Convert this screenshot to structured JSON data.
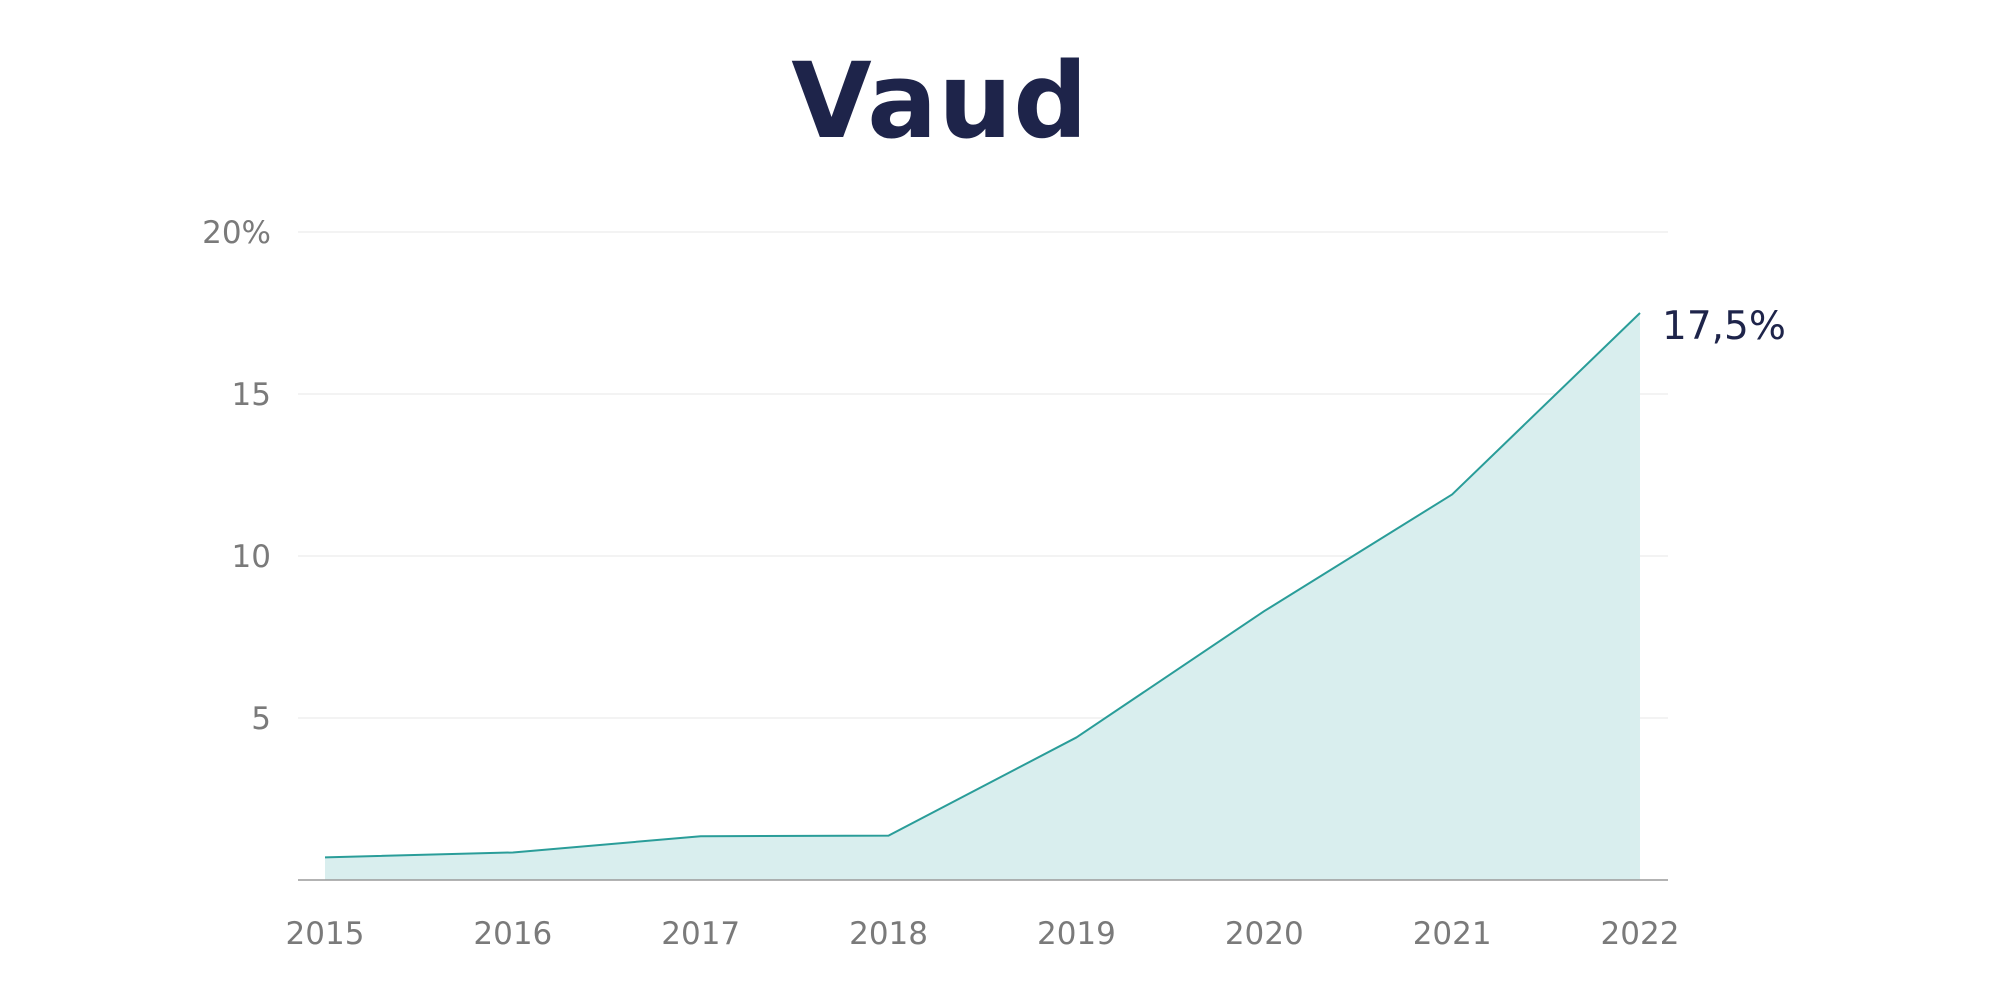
{
  "chart_data": {
    "type": "area",
    "title": "Vaud",
    "x": [
      "2015",
      "2016",
      "2017",
      "2018",
      "2019",
      "2020",
      "2021",
      "2022"
    ],
    "series": [
      {
        "values": [
          0.7,
          0.85,
          1.35,
          1.37,
          4.4,
          8.3,
          11.9,
          17.5
        ],
        "color": "#2a9d99"
      }
    ],
    "fill_color": "#d9eeee",
    "ylim": [
      0,
      20
    ],
    "y_ticks": [
      {
        "value": 5,
        "label": "5"
      },
      {
        "value": 10,
        "label": "10"
      },
      {
        "value": 15,
        "label": "15"
      },
      {
        "value": 20,
        "label": "20%"
      }
    ],
    "grid": true,
    "end_label": "17,5%",
    "xlabel": "",
    "ylabel": ""
  }
}
